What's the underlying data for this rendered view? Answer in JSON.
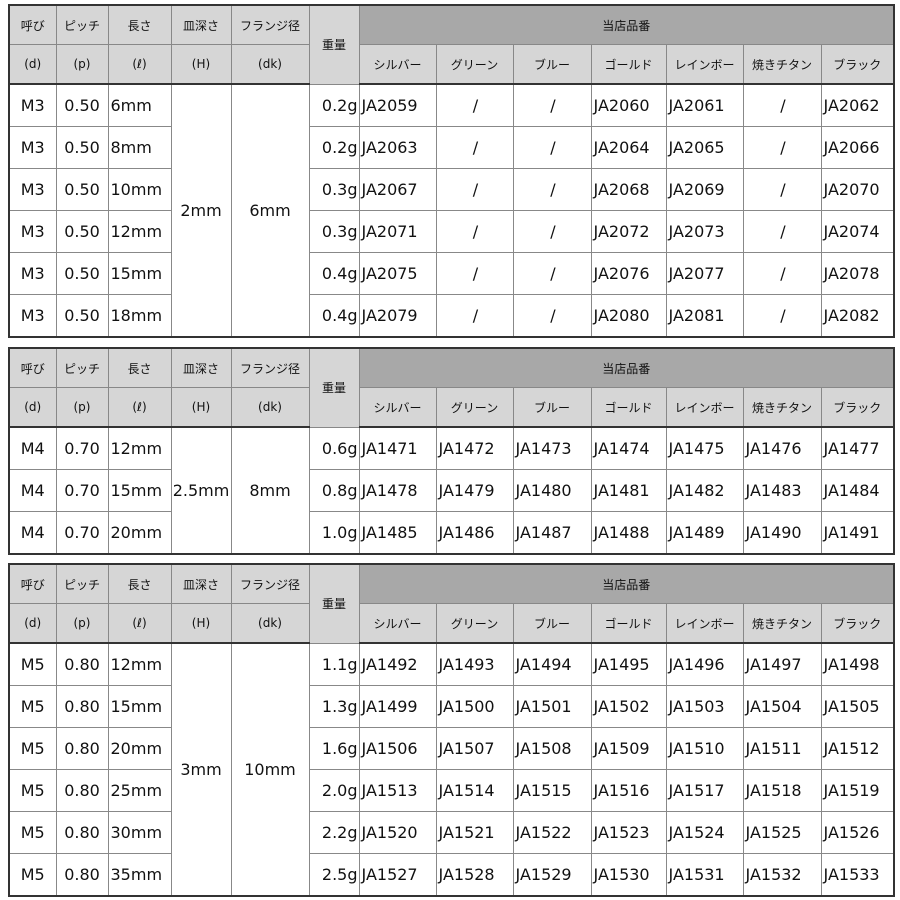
{
  "headers": {
    "nominal": "呼び",
    "nominal_sym": "(d)",
    "pitch": "ピッチ",
    "pitch_sym": "(p)",
    "length": "長さ",
    "length_sym": "(ℓ)",
    "depth": "皿深さ",
    "depth_sym": "(H)",
    "flange": "フランジ径",
    "flange_sym": "(dk)",
    "weight": "重量",
    "group": "当店品番",
    "colors": [
      "シルバー",
      "グリーン",
      "ブルー",
      "ゴールド",
      "レインボー",
      "焼きチタン",
      "ブラック"
    ]
  },
  "theme": {
    "header_bg": "#d6d6d6",
    "group_bg": "#a8a8a8",
    "border": "#333333"
  },
  "blocks": [
    {
      "depth": "2mm",
      "flange": "6mm",
      "rows": [
        {
          "d": "M3",
          "p": "0.50",
          "l": "6mm",
          "w": "0.2g",
          "codes": [
            "JA2059",
            "/",
            "/",
            "JA2060",
            "JA2061",
            "/",
            "JA2062"
          ]
        },
        {
          "d": "M3",
          "p": "0.50",
          "l": "8mm",
          "w": "0.2g",
          "codes": [
            "JA2063",
            "/",
            "/",
            "JA2064",
            "JA2065",
            "/",
            "JA2066"
          ]
        },
        {
          "d": "M3",
          "p": "0.50",
          "l": "10mm",
          "w": "0.3g",
          "codes": [
            "JA2067",
            "/",
            "/",
            "JA2068",
            "JA2069",
            "/",
            "JA2070"
          ]
        },
        {
          "d": "M3",
          "p": "0.50",
          "l": "12mm",
          "w": "0.3g",
          "codes": [
            "JA2071",
            "/",
            "/",
            "JA2072",
            "JA2073",
            "/",
            "JA2074"
          ]
        },
        {
          "d": "M3",
          "p": "0.50",
          "l": "15mm",
          "w": "0.4g",
          "codes": [
            "JA2075",
            "/",
            "/",
            "JA2076",
            "JA2077",
            "/",
            "JA2078"
          ]
        },
        {
          "d": "M3",
          "p": "0.50",
          "l": "18mm",
          "w": "0.4g",
          "codes": [
            "JA2079",
            "/",
            "/",
            "JA2080",
            "JA2081",
            "/",
            "JA2082"
          ]
        }
      ]
    },
    {
      "depth": "2.5mm",
      "flange": "8mm",
      "rows": [
        {
          "d": "M4",
          "p": "0.70",
          "l": "12mm",
          "w": "0.6g",
          "codes": [
            "JA1471",
            "JA1472",
            "JA1473",
            "JA1474",
            "JA1475",
            "JA1476",
            "JA1477"
          ]
        },
        {
          "d": "M4",
          "p": "0.70",
          "l": "15mm",
          "w": "0.8g",
          "codes": [
            "JA1478",
            "JA1479",
            "JA1480",
            "JA1481",
            "JA1482",
            "JA1483",
            "JA1484"
          ]
        },
        {
          "d": "M4",
          "p": "0.70",
          "l": "20mm",
          "w": "1.0g",
          "codes": [
            "JA1485",
            "JA1486",
            "JA1487",
            "JA1488",
            "JA1489",
            "JA1490",
            "JA1491"
          ]
        }
      ]
    },
    {
      "depth": "3mm",
      "flange": "10mm",
      "rows": [
        {
          "d": "M5",
          "p": "0.80",
          "l": "12mm",
          "w": "1.1g",
          "codes": [
            "JA1492",
            "JA1493",
            "JA1494",
            "JA1495",
            "JA1496",
            "JA1497",
            "JA1498"
          ]
        },
        {
          "d": "M5",
          "p": "0.80",
          "l": "15mm",
          "w": "1.3g",
          "codes": [
            "JA1499",
            "JA1500",
            "JA1501",
            "JA1502",
            "JA1503",
            "JA1504",
            "JA1505"
          ]
        },
        {
          "d": "M5",
          "p": "0.80",
          "l": "20mm",
          "w": "1.6g",
          "codes": [
            "JA1506",
            "JA1507",
            "JA1508",
            "JA1509",
            "JA1510",
            "JA1511",
            "JA1512"
          ]
        },
        {
          "d": "M5",
          "p": "0.80",
          "l": "25mm",
          "w": "2.0g",
          "codes": [
            "JA1513",
            "JA1514",
            "JA1515",
            "JA1516",
            "JA1517",
            "JA1518",
            "JA1519"
          ]
        },
        {
          "d": "M5",
          "p": "0.80",
          "l": "30mm",
          "w": "2.2g",
          "codes": [
            "JA1520",
            "JA1521",
            "JA1522",
            "JA1523",
            "JA1524",
            "JA1525",
            "JA1526"
          ]
        },
        {
          "d": "M5",
          "p": "0.80",
          "l": "35mm",
          "w": "2.5g",
          "codes": [
            "JA1527",
            "JA1528",
            "JA1529",
            "JA1530",
            "JA1531",
            "JA1532",
            "JA1533"
          ]
        }
      ]
    }
  ]
}
